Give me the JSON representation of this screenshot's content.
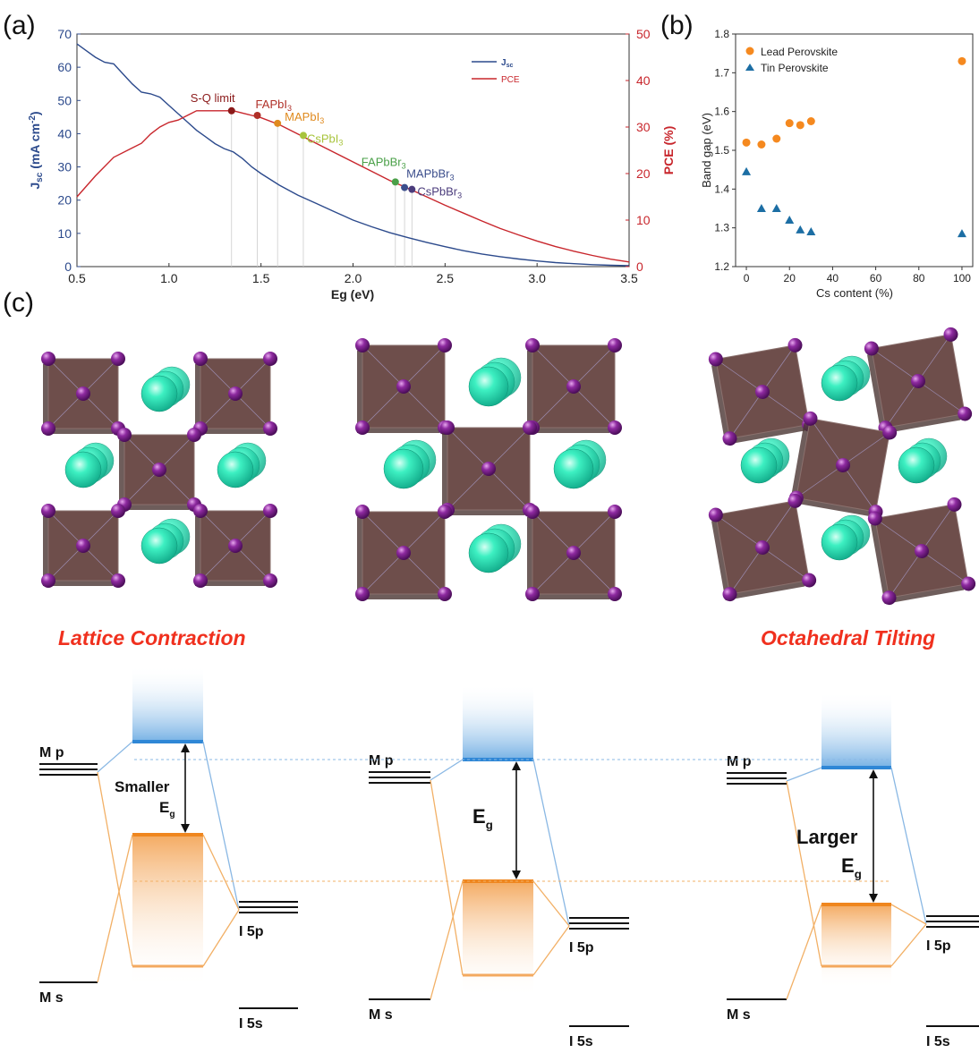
{
  "labels": {
    "a": "(a)",
    "b": "(b)",
    "c": "(c)"
  },
  "chart_data": [
    {
      "type": "line",
      "panel": "(a)",
      "xlabel": "Eg (eV)",
      "ylabel_left": "Jsc (mA cm-2)",
      "ylabel_right": "PCE (%)",
      "xlim": [
        0.5,
        3.5
      ],
      "ylim_left": [
        0,
        70
      ],
      "ylim_right": [
        0,
        50
      ],
      "xticks": [
        "0.5",
        "1.0",
        "1.5",
        "2.0",
        "2.5",
        "3.0",
        "3.5"
      ],
      "yticks_left": [
        "0",
        "10",
        "20",
        "30",
        "40",
        "50",
        "60",
        "70"
      ],
      "yticks_right": [
        "0",
        "10",
        "20",
        "30",
        "40",
        "50"
      ],
      "legend": {
        "position": "top-right",
        "entries": [
          "Jsc",
          "PCE"
        ]
      },
      "series": [
        {
          "name": "Jsc",
          "axis": "left",
          "color": "#2c4a8c",
          "x": [
            0.5,
            0.55,
            0.6,
            0.65,
            0.7,
            0.75,
            0.8,
            0.85,
            0.9,
            0.95,
            1.0,
            1.05,
            1.1,
            1.15,
            1.2,
            1.25,
            1.3,
            1.35,
            1.4,
            1.45,
            1.5,
            1.6,
            1.7,
            1.8,
            1.9,
            2.0,
            2.1,
            2.2,
            2.3,
            2.4,
            2.5,
            2.6,
            2.7,
            2.8,
            2.9,
            3.0,
            3.1,
            3.2,
            3.3,
            3.4,
            3.5
          ],
          "y": [
            67,
            65,
            63,
            61.5,
            61,
            58,
            55,
            52.5,
            52,
            51,
            48.5,
            46,
            43.5,
            41,
            39,
            37,
            35.5,
            34.5,
            32.5,
            30,
            28,
            24.5,
            21.5,
            19,
            16.5,
            14,
            12,
            10.2,
            8.7,
            7.3,
            6,
            4.8,
            3.8,
            3,
            2.3,
            1.7,
            1.2,
            0.9,
            0.6,
            0.4,
            0.3
          ]
        },
        {
          "name": "PCE",
          "axis": "right",
          "color": "#c8262c",
          "x": [
            0.5,
            0.6,
            0.7,
            0.8,
            0.85,
            0.9,
            0.95,
            1.0,
            1.05,
            1.1,
            1.15,
            1.2,
            1.25,
            1.3,
            1.35,
            1.4,
            1.45,
            1.5,
            1.6,
            1.7,
            1.8,
            1.9,
            2.0,
            2.1,
            2.2,
            2.3,
            2.4,
            2.5,
            2.6,
            2.7,
            2.8,
            2.9,
            3.0,
            3.1,
            3.2,
            3.3,
            3.4,
            3.5
          ],
          "y": [
            15,
            19.5,
            23.5,
            25.5,
            26.5,
            28.5,
            30,
            31,
            31.5,
            32.5,
            33.5,
            33.5,
            33.5,
            33.5,
            33.5,
            33,
            32.5,
            32,
            30.5,
            28.5,
            26.5,
            24.5,
            22.5,
            20.5,
            18.5,
            16.8,
            15,
            13.2,
            11.5,
            9.8,
            8.2,
            6.8,
            5.5,
            4.3,
            3.3,
            2.4,
            1.6,
            1.0
          ]
        }
      ],
      "annotations": [
        {
          "label": "S-Q limit",
          "x": 1.34,
          "pce": 33.5,
          "color": "#8b1a1a"
        },
        {
          "label": "FAPbI3",
          "x": 1.48,
          "pce": 32.5,
          "color": "#b03028"
        },
        {
          "label": "MAPbI3",
          "x": 1.59,
          "pce": 30.8,
          "color": "#e08a1e"
        },
        {
          "label": "CsPbI3",
          "x": 1.73,
          "pce": 28.2,
          "color": "#a8c43c"
        },
        {
          "label": "FAPbBr3",
          "x": 2.23,
          "pce": 18.2,
          "color": "#4aa048"
        },
        {
          "label": "MAPbBr3",
          "x": 2.28,
          "pce": 17.0,
          "color": "#3c4e8c"
        },
        {
          "label": "CsPbBr3",
          "x": 2.32,
          "pce": 16.6,
          "color": "#4b3c7c"
        }
      ]
    },
    {
      "type": "scatter",
      "panel": "(b)",
      "xlabel": "Cs content (%)",
      "ylabel": "Band gap (eV)",
      "xlim": [
        -5,
        105
      ],
      "ylim": [
        1.2,
        1.8
      ],
      "xticks": [
        "0",
        "20",
        "40",
        "60",
        "80",
        "100"
      ],
      "yticks": [
        "1.2",
        "1.3",
        "1.4",
        "1.5",
        "1.6",
        "1.7",
        "1.8"
      ],
      "legend": {
        "position": "top-left"
      },
      "series": [
        {
          "name": "Lead Perovskite",
          "marker": "circle",
          "color": "#f5891f",
          "x": [
            0,
            7,
            14,
            20,
            25,
            30,
            100
          ],
          "y": [
            1.52,
            1.515,
            1.53,
            1.57,
            1.565,
            1.575,
            1.73
          ]
        },
        {
          "name": "Tin Perovskite",
          "marker": "triangle",
          "color": "#1c6ea4",
          "x": [
            0,
            7,
            14,
            20,
            25,
            30,
            100
          ],
          "y": [
            1.445,
            1.35,
            1.35,
            1.32,
            1.295,
            1.29,
            1.285
          ]
        }
      ]
    }
  ],
  "panel_c": {
    "titles": {
      "left": "Lattice Contraction",
      "right": "Octahedral Tilting"
    },
    "levels": {
      "mp": "M p",
      "ms": "M s",
      "i5p": "I 5p",
      "i5s": "I 5s",
      "eg": "E",
      "eg_sub": "g",
      "smaller": "Smaller",
      "larger": "Larger"
    },
    "colors": {
      "conduction": "#2f87d6",
      "valence": "#ef861e",
      "octahedron": "#6e4e4b",
      "halide": "#7b1e8c",
      "cation": "#2ee6b4"
    }
  }
}
